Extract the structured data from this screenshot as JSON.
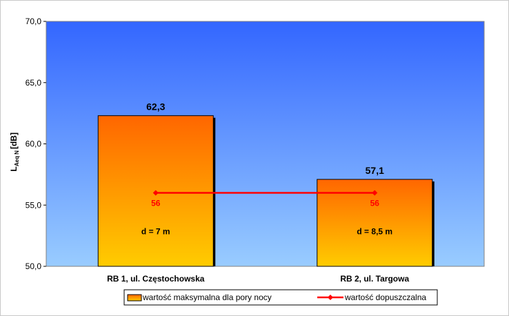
{
  "chart_data": {
    "type": "bar",
    "title": "",
    "categories": [
      "RB 1, ul. Częstochowska",
      "RB 2, ul. Targowa"
    ],
    "series": [
      {
        "name": "wartość maksymalna dla pory nocy",
        "values": [
          62.3,
          57.1
        ],
        "value_labels": [
          "62,3",
          "57,1"
        ],
        "inner_labels": [
          "d = 7 m",
          "d = 8,5 m"
        ]
      }
    ],
    "limit_series": {
      "name": "wartość dopuszczalna",
      "type": "line",
      "values": [
        56,
        56
      ],
      "value_labels": [
        "56",
        "56"
      ]
    },
    "ylabel_main": "L",
    "ylabel_sub": "Aeq N",
    "ylabel_unit": "[dB]",
    "ylim": [
      50,
      70
    ],
    "yticks": [
      50,
      55,
      60,
      65,
      70
    ],
    "ytick_labels": [
      "50,0",
      "55,0",
      "60,0",
      "65,0",
      "70,0"
    ],
    "legend_position": "bottom",
    "colors": {
      "bar_top": "#ff6600",
      "bar_bottom": "#ffcc00",
      "limit_line": "#ff0000",
      "plot_top": "#3366ff",
      "plot_bottom": "#99ccff"
    }
  }
}
